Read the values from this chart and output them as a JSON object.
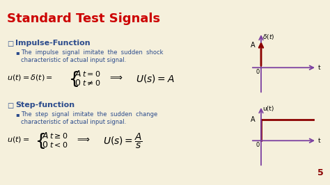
{
  "title": "Standard Test Signals",
  "title_color": "#cc0000",
  "bg_color": "#f5f0dc",
  "text_color": "#2b4b8c",
  "dark_red": "#8b0000",
  "purple_color": "#7b3fa0",
  "slide_number": "5",
  "impulse_heading": "Impulse-Function",
  "step_heading": "Step-function"
}
